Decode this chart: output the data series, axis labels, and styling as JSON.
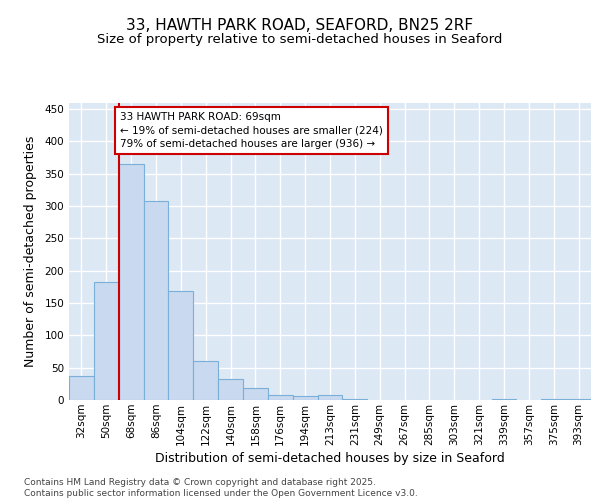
{
  "title_line1": "33, HAWTH PARK ROAD, SEAFORD, BN25 2RF",
  "title_line2": "Size of property relative to semi-detached houses in Seaford",
  "xlabel": "Distribution of semi-detached houses by size in Seaford",
  "ylabel": "Number of semi-detached properties",
  "categories": [
    "32sqm",
    "50sqm",
    "68sqm",
    "86sqm",
    "104sqm",
    "122sqm",
    "140sqm",
    "158sqm",
    "176sqm",
    "194sqm",
    "213sqm",
    "231sqm",
    "249sqm",
    "267sqm",
    "285sqm",
    "303sqm",
    "321sqm",
    "339sqm",
    "357sqm",
    "375sqm",
    "393sqm"
  ],
  "values": [
    37,
    183,
    365,
    307,
    168,
    60,
    33,
    18,
    8,
    6,
    8,
    1,
    0,
    0,
    0,
    0,
    0,
    2,
    0,
    1,
    2
  ],
  "bar_color": "#c8d9f0",
  "bar_edge_color": "#7ab0d8",
  "background_color": "#dde8f5",
  "grid_color": "#ffffff",
  "vline_color": "#cc0000",
  "vline_x": 2.0,
  "annotation_text": "33 HAWTH PARK ROAD: 69sqm\n← 19% of semi-detached houses are smaller (224)\n79% of semi-detached houses are larger (936) →",
  "annotation_box_color": "#cc0000",
  "footer": "Contains HM Land Registry data © Crown copyright and database right 2025.\nContains public sector information licensed under the Open Government Licence v3.0.",
  "ylim": [
    0,
    460
  ],
  "yticks": [
    0,
    50,
    100,
    150,
    200,
    250,
    300,
    350,
    400,
    450
  ],
  "title_fontsize": 11,
  "subtitle_fontsize": 9.5,
  "axis_label_fontsize": 9,
  "tick_fontsize": 7.5,
  "footer_fontsize": 6.5,
  "annot_fontsize": 7.5
}
